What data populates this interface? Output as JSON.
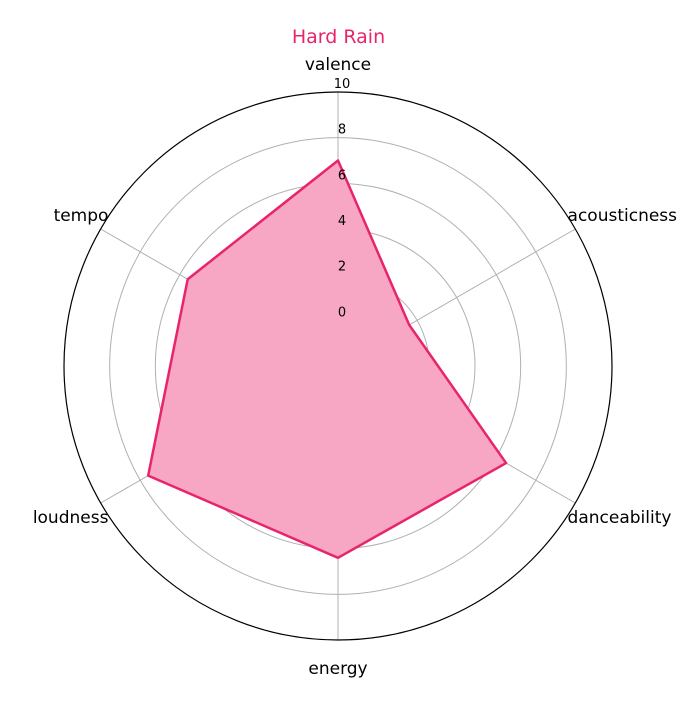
{
  "chart_data": {
    "type": "radar",
    "title": "Hard Rain",
    "axes": [
      "valence",
      "acousticness",
      "danceability",
      "energy",
      "loudness",
      "tempo"
    ],
    "series": [
      {
        "name": "",
        "values": [
          7.0,
          1.6,
          6.5,
          6.4,
          7.6,
          5.6
        ]
      }
    ],
    "r_ticks": [
      0,
      2,
      4,
      6,
      8,
      10
    ],
    "rlim": [
      -2,
      10
    ],
    "grid": true,
    "colors": {
      "line": "#e8246c",
      "fill": "#f7a6c3",
      "grid": "#b0b0b0",
      "title": "#e8246c"
    }
  }
}
